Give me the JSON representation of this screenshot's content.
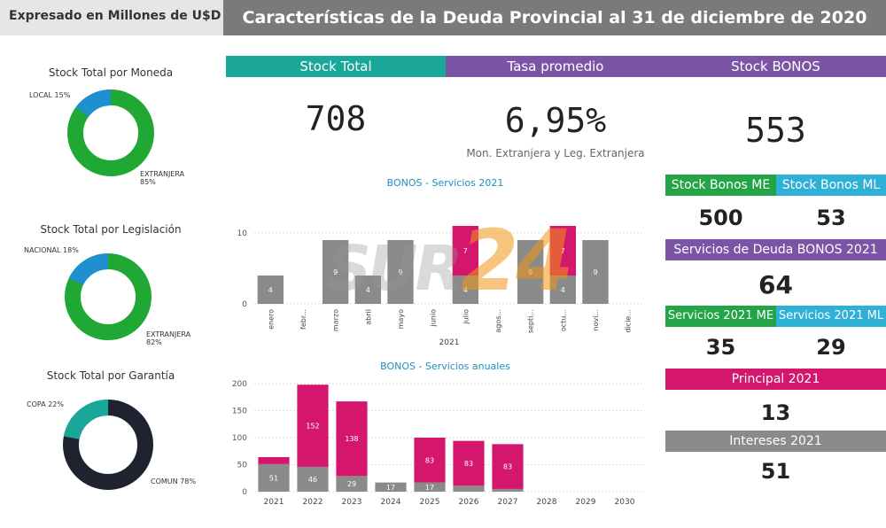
{
  "header": {
    "unit": "Expresado en Millones de U$D",
    "title": "Características de la Deuda Provincial al 31 de diciembre de 2020"
  },
  "colors": {
    "teal": "#1aa79a",
    "purple": "#7b54a6",
    "green": "#22a447",
    "sky": "#2fb0d6",
    "magenta": "#d4176d",
    "gray": "#8a8a8a",
    "dark": "#1f2330",
    "pie_blue": "#1e90d0",
    "pie_green": "#1fa833"
  },
  "pies": [
    {
      "title": "Stock Total por Moneda",
      "slices": [
        {
          "label": "LOCAL",
          "pct": "15%",
          "value": 15
        },
        {
          "label": "EXTRANJERA",
          "pct": "85%",
          "value": 85
        }
      ]
    },
    {
      "title": "Stock Total por Legislación",
      "slices": [
        {
          "label": "NACIONAL",
          "pct": "18%",
          "value": 18
        },
        {
          "label": "EXTRANJERA",
          "pct": "82%",
          "value": 82
        }
      ]
    },
    {
      "title": "Stock Total por Garantía",
      "slices": [
        {
          "label": "COPA",
          "pct": "22%",
          "value": 22
        },
        {
          "label": "COMUN",
          "pct": "78%",
          "value": 78
        }
      ]
    }
  ],
  "kpis": {
    "stock_total": {
      "label": "Stock Total",
      "value": "708"
    },
    "tasa": {
      "label": "Tasa promedio",
      "value": "6,95%",
      "sub": "Mon. Extranjera y Leg. Extranjera"
    },
    "stock_bonos": {
      "label": "Stock BONOS",
      "value": "553"
    },
    "stock_me": {
      "label": "Stock Bonos ME",
      "value": "500"
    },
    "stock_ml": {
      "label": "Stock Bonos ML",
      "value": "53"
    },
    "servicios": {
      "label": "Servicios de Deuda BONOS 2021",
      "value": "64"
    },
    "serv_me": {
      "label": "Servicios 2021 ME",
      "value": "35"
    },
    "serv_ml": {
      "label": "Servicios 2021 ML",
      "value": "29"
    },
    "principal": {
      "label": "Principal 2021",
      "value": "13"
    },
    "intereses": {
      "label": "Intereses 2021",
      "value": "51"
    }
  },
  "chart_data": [
    {
      "type": "bar",
      "title_a": "BONOS",
      "title_b": " - Servicios 2021",
      "xlabel": "2021",
      "categories": [
        "enero",
        "febr...",
        "marzo",
        "abril",
        "mayo",
        "junio",
        "julio",
        "agos...",
        "septi...",
        "octu...",
        "novi...",
        "dicie..."
      ],
      "series": [
        {
          "values": [
            4,
            0,
            9,
            4,
            9,
            0,
            4,
            0,
            9,
            4,
            9,
            0
          ]
        },
        {
          "values": [
            0,
            0,
            0,
            0,
            0,
            0,
            7,
            0,
            0,
            7,
            0,
            0
          ]
        }
      ],
      "yticks": [
        0,
        10
      ],
      "ylim": [
        0,
        11
      ]
    },
    {
      "type": "bar",
      "title_a": "BONOS",
      "title_b": " - Servicios anuales",
      "categories": [
        "2021",
        "2022",
        "2023",
        "2024",
        "2025",
        "2026",
        "2027",
        "2028",
        "2029",
        "2030"
      ],
      "series": [
        {
          "values": [
            51,
            46,
            29,
            17,
            17,
            11,
            5,
            0,
            0,
            0
          ]
        },
        {
          "values": [
            13,
            152,
            138,
            0,
            83,
            83,
            83,
            0,
            0,
            0
          ]
        }
      ],
      "yticks": [
        0,
        50,
        100,
        150,
        200
      ],
      "ylim": [
        0,
        200
      ]
    }
  ],
  "watermark": {
    "pre": "SUR",
    "main": "24"
  }
}
